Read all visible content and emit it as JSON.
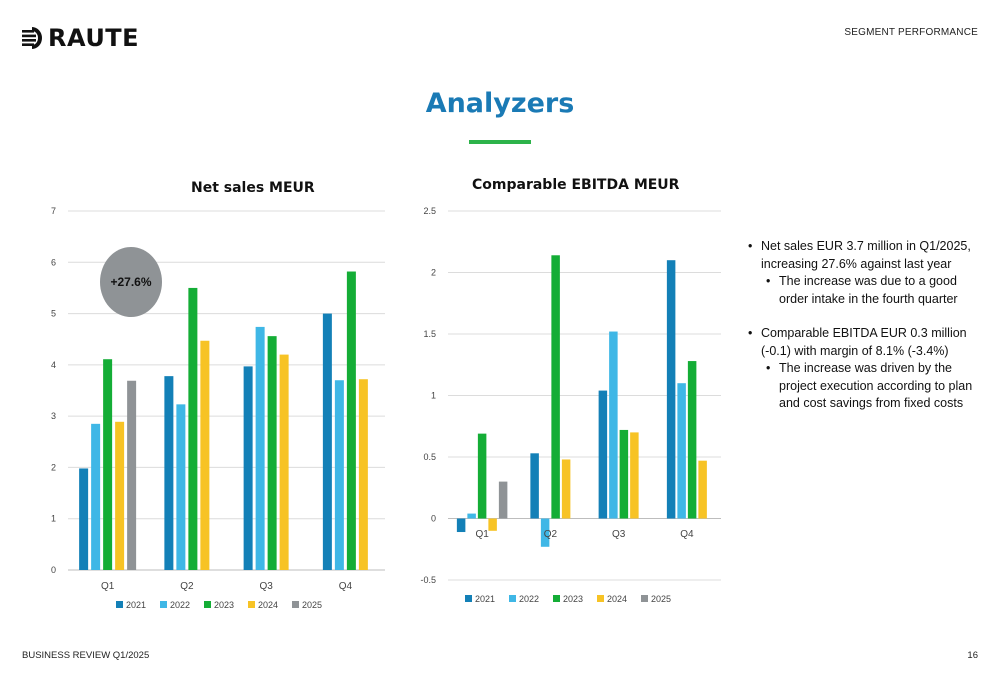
{
  "header": {
    "logo_text": "RAUTE",
    "section_label": "SEGMENT PERFORMANCE"
  },
  "page": {
    "title": "Analyzers",
    "accent_color": "#1a7ab5",
    "underline_color": "#2db34a"
  },
  "colors": {
    "2021": "#1380b7",
    "2022": "#3fb7e6",
    "2023": "#14ad36",
    "2024": "#f7c325",
    "2025": "#8f9396"
  },
  "chart_data": [
    {
      "type": "bar",
      "title": "Net sales MEUR",
      "categories": [
        "Q1",
        "Q2",
        "Q3",
        "Q4"
      ],
      "series": [
        {
          "name": "2021",
          "values": [
            1.98,
            3.78,
            3.97,
            5.0
          ]
        },
        {
          "name": "2022",
          "values": [
            2.85,
            3.23,
            4.74,
            3.7
          ]
        },
        {
          "name": "2023",
          "values": [
            4.11,
            5.5,
            4.56,
            5.82
          ]
        },
        {
          "name": "2024",
          "values": [
            2.89,
            4.47,
            4.2,
            3.72
          ]
        },
        {
          "name": "2025",
          "values": [
            3.69,
            null,
            null,
            null
          ]
        }
      ],
      "ylim": [
        0,
        7
      ],
      "yticks": [
        "0",
        "1",
        "2",
        "3",
        "4",
        "5",
        "6",
        "7"
      ],
      "grid": true,
      "legend": "bottom",
      "annotation": "+27.6%"
    },
    {
      "type": "bar",
      "title": "Comparable EBITDA MEUR",
      "categories": [
        "Q1",
        "Q2",
        "Q3",
        "Q4"
      ],
      "series": [
        {
          "name": "2021",
          "values": [
            -0.11,
            0.53,
            1.04,
            2.1
          ]
        },
        {
          "name": "2022",
          "values": [
            0.04,
            -0.23,
            1.52,
            1.1
          ]
        },
        {
          "name": "2023",
          "values": [
            0.69,
            2.14,
            0.72,
            1.28
          ]
        },
        {
          "name": "2024",
          "values": [
            -0.1,
            0.48,
            0.7,
            0.47
          ]
        },
        {
          "name": "2025",
          "values": [
            0.3,
            null,
            null,
            null
          ]
        }
      ],
      "ylim": [
        -0.5,
        2.5
      ],
      "yticks": [
        "-0.5",
        "0",
        "0.5",
        "1",
        "1.5",
        "2",
        "2.5"
      ],
      "grid": true,
      "legend": "bottom"
    }
  ],
  "bullets": {
    "b1": "Net sales EUR 3.7 million in Q1/2025, increasing 27.6% against last year",
    "b1_sub": "The increase was due to a good order intake in the fourth quarter",
    "b2": "Comparable EBITDA EUR 0.3 million (-0.1) with margin of 8.1% (-3.4%)",
    "b2_sub": "The increase was driven by the project execution according to plan and cost savings from fixed costs"
  },
  "footer": {
    "left": "BUSINESS REVIEW Q1/2025",
    "right": "16"
  }
}
